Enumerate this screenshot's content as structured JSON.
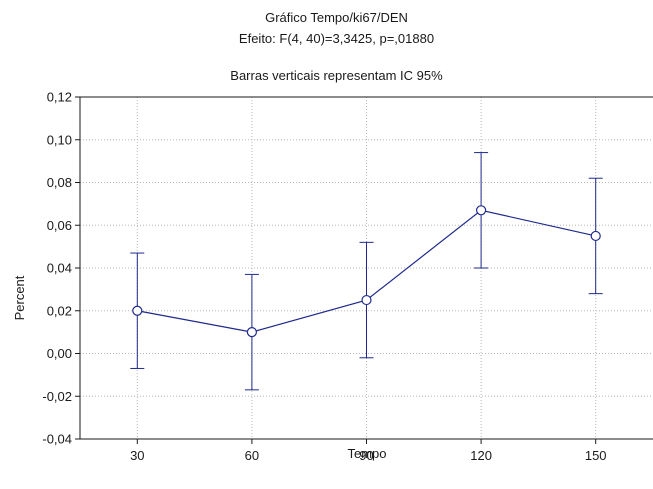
{
  "chart_data": {
    "type": "line",
    "title": "Gráfico Tempo/ki67/DEN",
    "subtitle": "Efeito: F(4, 40)=3,3425, p=,01880",
    "note": "Barras verticais representam IC 95%",
    "xlabel": "Tempo",
    "ylabel": "Percent",
    "categories": [
      "30",
      "60",
      "90",
      "120",
      "150"
    ],
    "series": [
      {
        "values": [
          0.02,
          0.01,
          0.025,
          0.067,
          0.055
        ],
        "ci_lower": [
          -0.007,
          -0.017,
          -0.002,
          0.04,
          0.028
        ],
        "ci_upper": [
          0.047,
          0.037,
          0.052,
          0.094,
          0.082
        ]
      }
    ],
    "ylim": [
      -0.04,
      0.12
    ],
    "yticks": [
      "-0,04",
      "-0,02",
      "0,00",
      "0,02",
      "0,04",
      "0,06",
      "0,08",
      "0,10",
      "0,12"
    ],
    "grid": true,
    "colors": {
      "line": "#1f2a8c",
      "grid": "#b8b8b8",
      "axis": "#1a1a1a"
    }
  }
}
